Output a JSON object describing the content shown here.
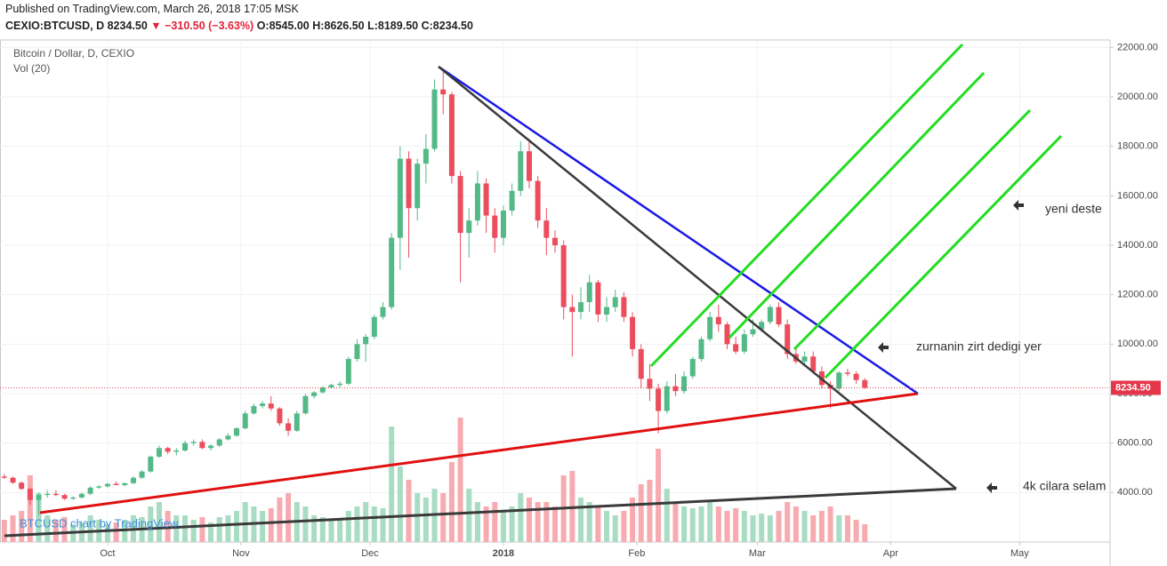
{
  "header": {
    "published": "Published on TradingView.com, March 26, 2018 17:05 MSK",
    "symbol": "CEXIO:BTCUSD, D",
    "last": "8234.50",
    "change": "▼ −310.50 (−3.63%)",
    "ohlc": [
      "O:8545.00",
      "H:8626.50",
      "L:8189.50",
      "C:8234.50"
    ]
  },
  "chart_data": {
    "type": "candlestick",
    "legend_title": "Bitcoin / Dollar, D, CEXIO",
    "volume_title": "Vol (20)",
    "watermark": "BTCUSD chart by TradingView",
    "annotations": [
      "yeni deste",
      "zurnanin zirt dedigi yer",
      "4k cilara selam"
    ],
    "up_color": "#53b987",
    "down_color": "#eb4d5c",
    "volume_up_color": "#a8dcc3",
    "volume_down_color": "#f7aab0",
    "grid": true,
    "xlim": [
      -0.5,
      128.5
    ],
    "xticks": [
      {
        "value": 12,
        "label": "Oct"
      },
      {
        "value": 27.5,
        "label": "Nov"
      },
      {
        "value": 42.5,
        "label": "Dec"
      },
      {
        "value": 58,
        "label": "2018"
      },
      {
        "value": 73.5,
        "label": "Feb"
      },
      {
        "value": 87.5,
        "label": "Mar"
      },
      {
        "value": 103,
        "label": "Apr"
      },
      {
        "value": 118,
        "label": "May"
      }
    ],
    "ylim": [
      2000,
      22300
    ],
    "yticks": [
      {
        "value": 4000,
        "label": "4000.00"
      },
      {
        "value": 6000,
        "label": "6000.00"
      },
      {
        "value": 8000,
        "label": "8000.00"
      },
      {
        "value": 10000,
        "label": "10000.00"
      },
      {
        "value": 12000,
        "label": "12000.00"
      },
      {
        "value": 14000,
        "label": "14000.00"
      },
      {
        "value": 16000,
        "label": "16000.00"
      },
      {
        "value": 18000,
        "label": "18000.00"
      },
      {
        "value": 20000,
        "label": "20000.00"
      },
      {
        "value": 22000,
        "label": "22000.00"
      }
    ],
    "last_price": {
      "value": 8234.5,
      "label": "8234.50"
    },
    "vlim": [
      0,
      200
    ],
    "candles": [
      [
        4650,
        4750,
        4550,
        4600
      ],
      [
        4600,
        4650,
        4350,
        4400
      ],
      [
        4400,
        4450,
        4100,
        4150
      ],
      [
        4150,
        4200,
        3500,
        3700
      ],
      [
        3700,
        4000,
        3100,
        3900
      ],
      [
        3900,
        4100,
        3800,
        3950
      ],
      [
        3950,
        4100,
        3850,
        3900
      ],
      [
        3900,
        3950,
        3700,
        3750
      ],
      [
        3750,
        3850,
        3700,
        3800
      ],
      [
        3800,
        4000,
        3750,
        3950
      ],
      [
        3950,
        4250,
        3900,
        4200
      ],
      [
        4200,
        4300,
        4150,
        4250
      ],
      [
        4250,
        4400,
        4200,
        4350
      ],
      [
        4350,
        4450,
        4300,
        4300
      ],
      [
        4300,
        4400,
        4250,
        4380
      ],
      [
        4380,
        4650,
        4350,
        4600
      ],
      [
        4600,
        4900,
        4550,
        4850
      ],
      [
        4850,
        5500,
        4800,
        5450
      ],
      [
        5450,
        5900,
        5400,
        5800
      ],
      [
        5800,
        5850,
        5550,
        5650
      ],
      [
        5650,
        5800,
        5500,
        5700
      ],
      [
        5700,
        6100,
        5650,
        6000
      ],
      [
        6000,
        6150,
        5900,
        6050
      ],
      [
        6050,
        6150,
        5750,
        5800
      ],
      [
        5800,
        5950,
        5700,
        5900
      ],
      [
        5900,
        6200,
        5850,
        6150
      ],
      [
        6150,
        6400,
        6100,
        6300
      ],
      [
        6300,
        6650,
        6250,
        6600
      ],
      [
        6600,
        7300,
        6550,
        7200
      ],
      [
        7200,
        7600,
        7150,
        7500
      ],
      [
        7500,
        7700,
        7400,
        7600
      ],
      [
        7600,
        7900,
        7300,
        7400
      ],
      [
        7400,
        7450,
        6700,
        6800
      ],
      [
        6800,
        7000,
        6300,
        6500
      ],
      [
        6500,
        7300,
        6450,
        7200
      ],
      [
        7200,
        8000,
        7150,
        7900
      ],
      [
        7900,
        8100,
        7800,
        8050
      ],
      [
        8050,
        8300,
        8000,
        8250
      ],
      [
        8250,
        8400,
        8200,
        8350
      ],
      [
        8350,
        8500,
        8250,
        8400
      ],
      [
        8400,
        9500,
        8350,
        9400
      ],
      [
        9400,
        10200,
        9300,
        10000
      ],
      [
        10000,
        10400,
        9300,
        10300
      ],
      [
        10300,
        11200,
        10200,
        11100
      ],
      [
        11100,
        11700,
        11000,
        11500
      ],
      [
        11500,
        14500,
        11400,
        14300
      ],
      [
        14300,
        18000,
        13000,
        17500
      ],
      [
        17500,
        17800,
        13500,
        15500
      ],
      [
        15500,
        17500,
        15000,
        17300
      ],
      [
        17300,
        18500,
        16500,
        17900
      ],
      [
        17900,
        20700,
        17800,
        20300
      ],
      [
        20300,
        21000,
        19300,
        20100
      ],
      [
        20100,
        20200,
        16500,
        16800
      ],
      [
        16800,
        17000,
        12500,
        14500
      ],
      [
        14500,
        15500,
        13500,
        15000
      ],
      [
        15000,
        17000,
        14800,
        16500
      ],
      [
        16500,
        16700,
        14500,
        15200
      ],
      [
        15200,
        15500,
        13700,
        14300
      ],
      [
        14300,
        15600,
        14000,
        15400
      ],
      [
        15400,
        16500,
        15200,
        16200
      ],
      [
        16200,
        18200,
        16000,
        17800
      ],
      [
        17800,
        18300,
        16300,
        16600
      ],
      [
        16600,
        16800,
        14700,
        15000
      ],
      [
        15000,
        15500,
        13600,
        14300
      ],
      [
        14300,
        14600,
        13700,
        14000
      ],
      [
        14000,
        14200,
        11000,
        11500
      ],
      [
        11500,
        12000,
        9500,
        11300
      ],
      [
        11300,
        12300,
        11000,
        11700
      ],
      [
        11700,
        12800,
        11300,
        12500
      ],
      [
        12500,
        12600,
        10900,
        11200
      ],
      [
        11200,
        11900,
        10900,
        11500
      ],
      [
        11500,
        12200,
        11300,
        11900
      ],
      [
        11900,
        12100,
        10900,
        11100
      ],
      [
        11100,
        11300,
        9500,
        9800
      ],
      [
        9800,
        10000,
        8200,
        8600
      ],
      [
        8600,
        9200,
        7700,
        8200
      ],
      [
        8200,
        8400,
        6400,
        7300
      ],
      [
        7300,
        8500,
        7200,
        8300
      ],
      [
        8300,
        8800,
        7900,
        8100
      ],
      [
        8100,
        8900,
        8000,
        8700
      ],
      [
        8700,
        9500,
        8600,
        9400
      ],
      [
        9400,
        10300,
        9300,
        10200
      ],
      [
        10200,
        11300,
        10100,
        11100
      ],
      [
        11100,
        11600,
        10500,
        10800
      ],
      [
        10800,
        10900,
        9800,
        10000
      ],
      [
        10000,
        10300,
        9600,
        9700
      ],
      [
        9700,
        10600,
        9600,
        10400
      ],
      [
        10400,
        11000,
        10300,
        10600
      ],
      [
        10600,
        11000,
        10500,
        10900
      ],
      [
        10900,
        11600,
        10800,
        11500
      ],
      [
        11500,
        11700,
        10700,
        10800
      ],
      [
        10800,
        11000,
        9400,
        9600
      ],
      [
        9600,
        9900,
        9200,
        9300
      ],
      [
        9300,
        9700,
        9100,
        9500
      ],
      [
        9500,
        9700,
        8800,
        8900
      ],
      [
        8900,
        9100,
        8200,
        8350
      ],
      [
        8350,
        8500,
        7400,
        8200
      ],
      [
        8200,
        8900,
        8100,
        8850
      ],
      [
        8850,
        9000,
        8700,
        8800
      ],
      [
        8800,
        8900,
        8400,
        8550
      ],
      [
        8545,
        8626.5,
        8189.5,
        8234.5
      ]
    ],
    "volumes": [
      25,
      30,
      35,
      75,
      55,
      30,
      25,
      28,
      20,
      22,
      30,
      25,
      20,
      22,
      25,
      30,
      28,
      40,
      45,
      35,
      30,
      30,
      25,
      28,
      22,
      28,
      30,
      35,
      45,
      40,
      35,
      38,
      50,
      55,
      45,
      40,
      30,
      28,
      25,
      25,
      35,
      40,
      45,
      40,
      38,
      130,
      85,
      70,
      55,
      50,
      60,
      55,
      90,
      140,
      60,
      45,
      40,
      45,
      35,
      40,
      55,
      50,
      45,
      45,
      40,
      75,
      80,
      50,
      45,
      40,
      35,
      30,
      35,
      50,
      65,
      70,
      105,
      60,
      45,
      40,
      38,
      40,
      45,
      40,
      35,
      38,
      35,
      30,
      32,
      30,
      35,
      45,
      40,
      35,
      30,
      35,
      40,
      30,
      30,
      25,
      20
    ]
  }
}
